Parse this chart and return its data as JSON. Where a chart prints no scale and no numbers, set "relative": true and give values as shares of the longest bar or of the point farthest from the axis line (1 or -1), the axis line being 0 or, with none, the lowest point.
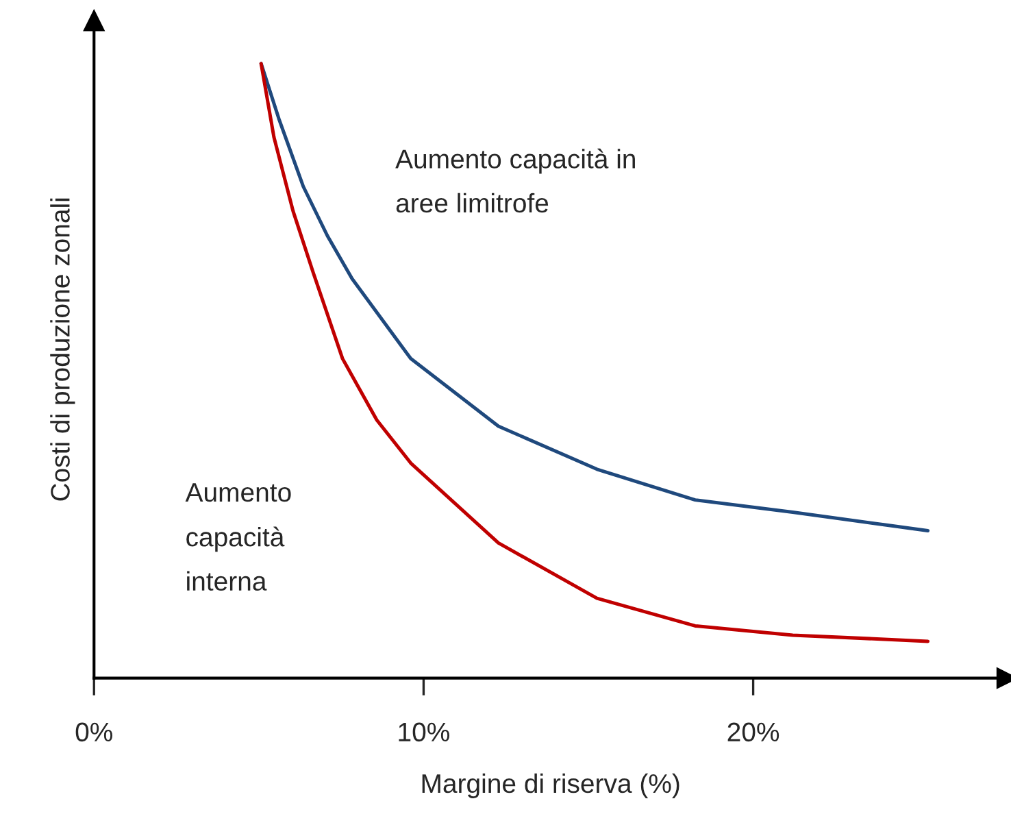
{
  "chart_data": {
    "type": "line",
    "relative": true,
    "xlabel": "Margine di riserva (%)",
    "ylabel": "Costi di produzione zonali",
    "xlim": [
      0,
      27.7
    ],
    "xticks": [
      {
        "value": 0,
        "label": "0%"
      },
      {
        "value": 10,
        "label": "10%"
      },
      {
        "value": 20,
        "label": "20%"
      }
    ],
    "series": [
      {
        "color": "#1f497d",
        "x": [
          5.07,
          5.61,
          6.35,
          7.08,
          7.83,
          9.61,
          12.27,
          15.26,
          18.24,
          21.2,
          25.3
        ],
        "values": [
          1.0,
          0.91,
          0.8,
          0.72,
          0.65,
          0.52,
          0.41,
          0.34,
          0.29,
          0.27,
          0.24
        ]
      },
      {
        "color": "#c00000",
        "x": [
          5.07,
          5.46,
          6.04,
          6.65,
          7.54,
          8.58,
          9.61,
          12.27,
          15.26,
          18.24,
          21.2,
          25.3
        ],
        "values": [
          1.0,
          0.88,
          0.76,
          0.66,
          0.52,
          0.42,
          0.35,
          0.22,
          0.13,
          0.085,
          0.07,
          0.06
        ]
      }
    ],
    "annotations": [
      "Aumento capacità in\naree limitrofe",
      "Aumento\ncapacità\ninterna"
    ],
    "grid": false,
    "line_style": "solid",
    "marker": "none"
  }
}
